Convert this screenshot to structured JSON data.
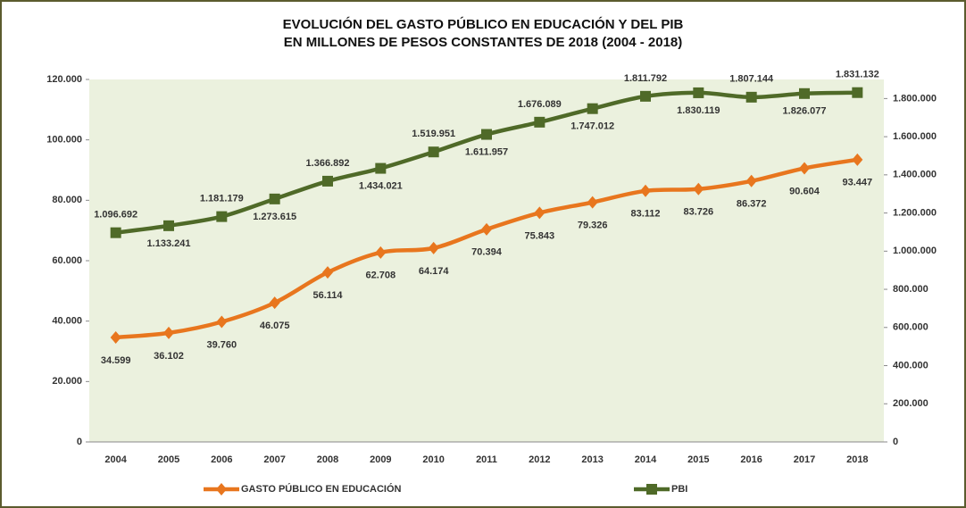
{
  "chart_data": {
    "type": "line",
    "title": [
      "EVOLUCIÓN DEL GASTO PÚBLICO EN EDUCACIÓN Y DEL PIB",
      "EN MILLONES DE PESOS CONSTANTES DE 2018 (2004 - 2018)"
    ],
    "categories": [
      "2004",
      "2005",
      "2006",
      "2007",
      "2008",
      "2009",
      "2010",
      "2011",
      "2012",
      "2013",
      "2014",
      "2015",
      "2016",
      "2017",
      "2018"
    ],
    "series": [
      {
        "name": "GASTO PÚBLICO EN EDUCACIÓN",
        "color": "#e8761e",
        "marker": "diamond",
        "values": [
          34599,
          36102,
          39760,
          46075,
          56114,
          62708,
          64174,
          70394,
          75843,
          79326,
          83112,
          83726,
          86372,
          90604,
          93447
        ],
        "value_labels": [
          "34.599",
          "36.102",
          "39.760",
          "46.075",
          "56.114",
          "62.708",
          "64.174",
          "70.394",
          "75.843",
          "79.326",
          "83.112",
          "83.726",
          "86.372",
          "90.604",
          "93.447"
        ]
      },
      {
        "name": "PBI",
        "color": "#4f6a28",
        "marker": "square",
        "axis": "y2",
        "values": [
          1096692,
          1133241,
          1181179,
          1273615,
          1366892,
          1434021,
          1519951,
          1611957,
          1676089,
          1747012,
          1811792,
          1830119,
          1807144,
          1826077,
          1831132
        ],
        "value_labels": [
          "1.096.692",
          "1.133.241",
          "1.181.179",
          "1.273.615",
          "1.366.892",
          "1.434.021",
          "1.519.951",
          "1.611.957",
          "1.676.089",
          "1.747.012",
          "1.811.792",
          "1.830.119",
          "1.807.144",
          "1.826.077",
          "1.831.132"
        ]
      }
    ],
    "ylim": [
      0,
      120000
    ],
    "yticks": [
      0,
      {
        "value": 20000,
        "label": "20.000"
      },
      {
        "value": 40000,
        "label": "40.000"
      },
      {
        "value": 60000,
        "label": "60.000"
      },
      {
        "value": 80000,
        "label": "80.000"
      },
      {
        "value": 100000,
        "label": "100.000"
      },
      {
        "value": 120000,
        "label": "120.000"
      }
    ],
    "y2lim": [
      0,
      1900000
    ],
    "y2ticks": [
      0,
      {
        "value": 200000,
        "label": "200.000"
      },
      {
        "value": 400000,
        "label": "400.000"
      },
      {
        "value": 600000,
        "label": "600.000"
      },
      {
        "value": 800000,
        "label": "800.000"
      },
      {
        "value": 1000000,
        "label": "1.000.000"
      },
      {
        "value": 1200000,
        "label": "1.200.000"
      },
      {
        "value": 1400000,
        "label": "1.400.000"
      },
      {
        "value": 1600000,
        "label": "1.600.000"
      },
      {
        "value": 1800000,
        "label": "1.800.000"
      }
    ],
    "legend": "bottom",
    "plot_background": "#ebf1de"
  }
}
